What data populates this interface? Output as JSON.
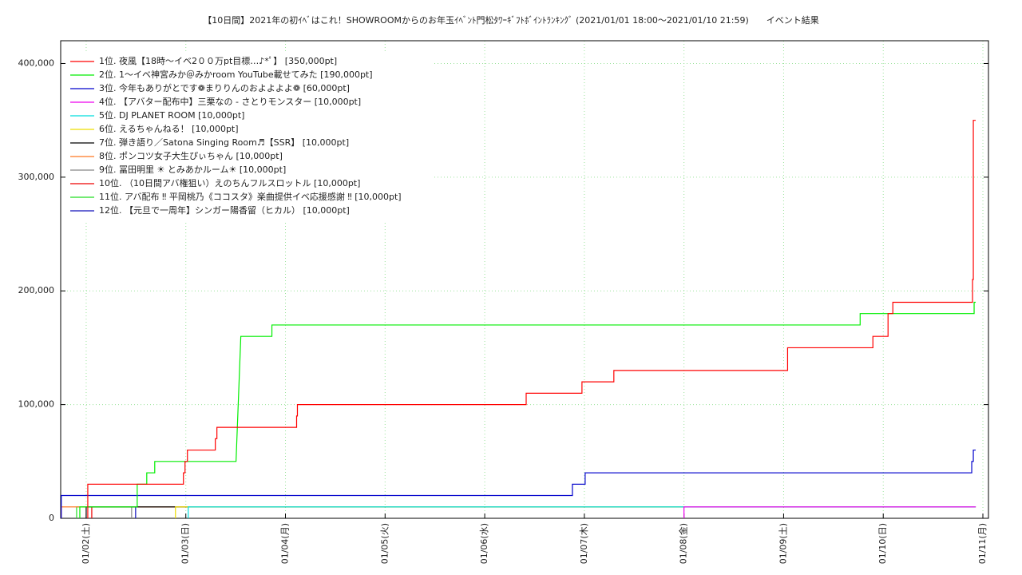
{
  "chart_data": {
    "type": "line",
    "title": "【10日間】2021年の初ｲﾍﾞはこれ！SHOWROOMからのお年玉ｲﾍﾞﾝﾄ門松ﾀﾜｰｷﾞﾌﾄﾎﾞｲﾝﾄﾗﾝｷﾝｸﾞ (2021/01/01 18:00〜2021/01/10 21:59)　　イベント結果",
    "xlim": [
      1.744,
      11.056
    ],
    "ylim": [
      0,
      420000
    ],
    "xticks": [
      {
        "value": 2,
        "label": "01/02(土)"
      },
      {
        "value": 3,
        "label": "01/03(日)"
      },
      {
        "value": 4,
        "label": "01/04(月)"
      },
      {
        "value": 5,
        "label": "01/05(火)"
      },
      {
        "value": 6,
        "label": "01/06(水)"
      },
      {
        "value": 7,
        "label": "01/07(木)"
      },
      {
        "value": 8,
        "label": "01/08(金)"
      },
      {
        "value": 9,
        "label": "01/09(土)"
      },
      {
        "value": 10,
        "label": "01/10(日)"
      },
      {
        "value": 11,
        "label": "01/11(月)"
      }
    ],
    "yticks": [
      0,
      {
        "value": 100000,
        "label": "100,000"
      },
      {
        "value": 200000,
        "label": "200,000"
      },
      {
        "value": 300000,
        "label": "300,000"
      },
      {
        "value": 400000,
        "label": "400,000"
      }
    ],
    "grid": true,
    "legend": "upper left",
    "series": [
      {
        "name": " 1位. 夜風【18時〜イベ2００万pt目標…♪*ﾟ】 [350,000pt]",
        "color": "#ff0000",
        "x": [
          2.016,
          2.016,
          2.976,
          2.976,
          2.992,
          2.992,
          3.016,
          3.016,
          3.296,
          3.296,
          3.312,
          3.312,
          4.112,
          4.112,
          4.12,
          4.12,
          6.416,
          6.416,
          6.976,
          6.976,
          7.296,
          7.296,
          9.04,
          9.04,
          9.896,
          9.896,
          10.048,
          10.048,
          10.096,
          10.096,
          10.896,
          10.896,
          10.904,
          10.904,
          10.928
        ],
        "values": [
          0,
          30000,
          30000,
          40000,
          40000,
          50000,
          50000,
          60000,
          60000,
          70000,
          70000,
          80000,
          80000,
          90000,
          90000,
          100000,
          100000,
          110000,
          110000,
          120000,
          120000,
          130000,
          130000,
          150000,
          150000,
          160000,
          160000,
          180000,
          180000,
          190000,
          190000,
          210000,
          210000,
          350000,
          350000
        ]
      },
      {
        "name": " 2位. 1〜イベ神宮みか＠みかroom YouTube載せてみた [190,000pt]",
        "color": "#00ee00",
        "x": [
          1.936,
          1.936,
          2.512,
          2.512,
          2.608,
          2.608,
          2.688,
          2.688,
          3.504,
          3.552,
          3.864,
          3.864,
          9.768,
          9.768,
          10.912,
          10.912,
          10.928
        ],
        "values": [
          0,
          10000,
          10000,
          30000,
          30000,
          40000,
          40000,
          50000,
          50000,
          160000,
          160000,
          170000,
          170000,
          180000,
          180000,
          190000,
          190000
        ]
      },
      {
        "name": " 3位. 今年もありがとです❁まりりんのおよよよよ❁ [60,000pt]",
        "color": "#0000cc",
        "x": [
          1.75,
          1.75,
          6.88,
          6.88,
          7.008,
          7.008,
          10.888,
          10.888,
          10.904,
          10.904,
          10.928
        ],
        "values": [
          0,
          20000,
          20000,
          30000,
          30000,
          40000,
          40000,
          50000,
          50000,
          60000,
          60000
        ]
      },
      {
        "name": " 4位. 【アバター配布中】三栗なの - さとりモンスター [10,000pt]",
        "color": "#ee00ee",
        "x": [
          8.0,
          8.0,
          10.928
        ],
        "values": [
          0,
          10000,
          10000
        ]
      },
      {
        "name": " 5位. DJ PLANET ROOM [10,000pt]",
        "color": "#00dddd",
        "x": [
          3.024,
          3.024,
          10.928
        ],
        "values": [
          0,
          10000,
          10000
        ]
      },
      {
        "name": " 6位. えるちゃんねる！ [10,000pt]",
        "color": "#eedd00",
        "x": [
          2.896,
          2.896,
          10.928
        ],
        "values": [
          0,
          10000,
          10000
        ]
      },
      {
        "name": " 7位. 弾き語り／Satona Singing Room♬【SSR】 [10,000pt]",
        "color": "#000000",
        "x": [
          2.0,
          2.0,
          10.928
        ],
        "values": [
          0,
          10000,
          10000
        ]
      },
      {
        "name": " 8位. ポンコツ女子大生ぴぃちゃん [10,000pt]",
        "color": "#ff7722",
        "x": [
          1.75,
          1.75,
          10.928
        ],
        "values": [
          0,
          10000,
          10000
        ]
      },
      {
        "name": " 9位. 冨田明里 ☀ とみあかルーム☀ [10,000pt]",
        "color": "#888888",
        "x": [
          2.456,
          2.456,
          10.928
        ],
        "values": [
          0,
          10000,
          10000
        ]
      },
      {
        "name": "10位. （10日間アバ権狙い）えのちんフルスロットル [10,000pt]",
        "color": "#ee0000",
        "x": [
          2.056,
          2.056,
          10.928
        ],
        "values": [
          0,
          10000,
          10000
        ]
      },
      {
        "name": "11位. アバ配布 ‼ 平岡桃乃《ココスタ》楽曲提供イベ応援感謝 ‼ [10,000pt]",
        "color": "#22dd22",
        "x": [
          1.904,
          1.904,
          10.928
        ],
        "values": [
          0,
          10000,
          10000
        ]
      },
      {
        "name": "12位. 【元旦で一周年】シンガー陽香留（ヒカル） [10,000pt]",
        "color": "#1111bb",
        "x": [
          2.496,
          2.496,
          10.928
        ],
        "values": [
          0,
          10000,
          10000
        ]
      }
    ]
  }
}
